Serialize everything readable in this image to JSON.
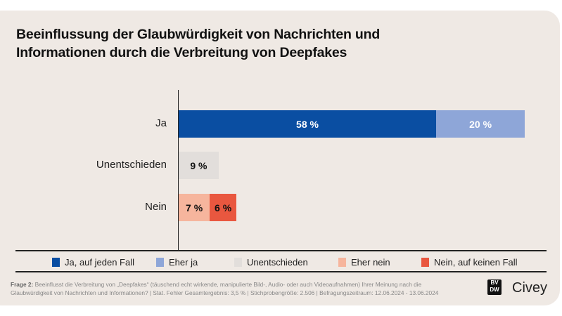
{
  "chart_data": {
    "type": "bar",
    "orientation": "horizontal",
    "stacked": true,
    "title": "Beeinflussung der Glaubwürdigkeit von Nachrichten und Informationen durch die Verbreitung von Deepfakes",
    "categories": [
      "Ja",
      "Unentschieden",
      "Nein"
    ],
    "series": [
      {
        "name": "Ja, auf jeden Fall",
        "color": "#0a4ea2",
        "values": [
          58,
          0,
          0
        ],
        "labels": [
          "58 %",
          "",
          ""
        ]
      },
      {
        "name": "Eher ja",
        "color": "#8ea6d8",
        "values": [
          20,
          0,
          0
        ],
        "labels": [
          "20 %",
          "",
          ""
        ]
      },
      {
        "name": "Unentschieden",
        "color": "#e2dedb",
        "values": [
          0,
          9,
          0
        ],
        "labels": [
          "",
          "9 %",
          ""
        ]
      },
      {
        "name": "Eher nein",
        "color": "#f6b59d",
        "values": [
          0,
          0,
          7
        ],
        "labels": [
          "",
          "",
          "7 %"
        ]
      },
      {
        "name": "Nein, auf keinen Fall",
        "color": "#e9573f",
        "values": [
          0,
          0,
          6
        ],
        "labels": [
          "",
          "",
          "6 %"
        ]
      }
    ],
    "xlim": [
      0,
      100
    ],
    "grid": false,
    "legend": "bottom"
  },
  "footer": {
    "question_label": "Frage 2:",
    "question_text": " Beeinflusst die Verbreitung von „Deepfakes“ (täuschend echt wirkende, manipulierte Bild-, Audio- oder auch Videoaufnahmen) Ihrer Meinung nach die Glaubwürdigkeit von Nachrichten und Informationen? | Stat. Fehler Gesamtergebnis: 3,5 % | Stichprobengröße: 2.506 | Befragungszeitraum: 12.06.2024 - 13.06.2024",
    "logo_text": "BV DW",
    "brand": "Civey"
  }
}
